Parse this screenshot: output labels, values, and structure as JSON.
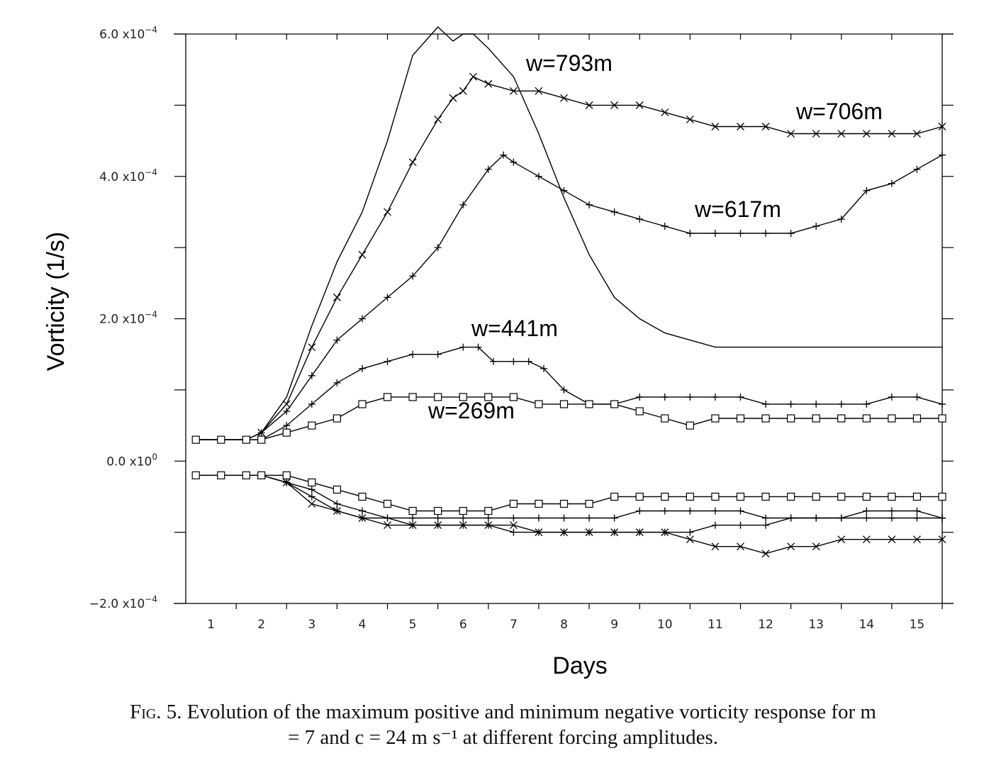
{
  "chart_data": {
    "type": "line",
    "title": "",
    "xlabel": "Days",
    "ylabel": "Vorticity (1/s)",
    "xlim": [
      0.5,
      15.5
    ],
    "ylim": [
      -0.0002,
      0.0006
    ],
    "x_ticks": [
      "1",
      "2",
      "3",
      "4",
      "5",
      "6",
      "7",
      "8",
      "9",
      "10",
      "11",
      "12",
      "13",
      "14",
      "15"
    ],
    "y_ticks": [
      {
        "mantissa": "6.0",
        "exp": "−4"
      },
      {
        "mantissa": "4.0",
        "exp": "−4"
      },
      {
        "mantissa": "2.0",
        "exp": "−4"
      },
      {
        "mantissa": "0.0",
        "exp": "0",
        "base": "x10"
      },
      {
        "mantissa": "−2.0",
        "exp": "−4"
      }
    ],
    "grid": false,
    "series": [
      {
        "name": "w=793m",
        "marker": "none",
        "x": [
          0.7,
          1.2,
          1.7,
          2.0,
          2.5,
          3.0,
          3.5,
          4.0,
          4.5,
          5.0,
          5.5,
          5.8,
          6.0,
          6.2,
          6.5,
          7.0,
          7.5,
          8.0,
          8.5,
          9.0,
          9.5,
          10.0,
          10.5,
          11.0,
          12.0,
          13.0,
          14.0,
          15.0,
          15.5
        ],
        "y": [
          3e-05,
          3e-05,
          3e-05,
          4e-05,
          9e-05,
          0.00019,
          0.00028,
          0.00035,
          0.00045,
          0.00057,
          0.00061,
          0.00059,
          0.0006,
          0.0006,
          0.00058,
          0.00054,
          0.00046,
          0.00037,
          0.00029,
          0.00023,
          0.0002,
          0.00018,
          0.00017,
          0.00016,
          0.00016,
          0.00016,
          0.00016,
          0.00016,
          0.00016
        ]
      },
      {
        "name": "w=706m",
        "marker": "x",
        "x": [
          0.7,
          1.2,
          1.7,
          2.0,
          2.5,
          3.0,
          3.5,
          4.0,
          4.5,
          5.0,
          5.5,
          5.8,
          6.0,
          6.2,
          6.5,
          7.0,
          7.5,
          8.0,
          8.5,
          9.0,
          9.5,
          10.0,
          10.5,
          11.0,
          11.5,
          12.0,
          12.5,
          13.0,
          13.5,
          14.0,
          14.5,
          15.0,
          15.5
        ],
        "y": [
          3e-05,
          3e-05,
          3e-05,
          4e-05,
          8e-05,
          0.00016,
          0.00023,
          0.00029,
          0.00035,
          0.00042,
          0.00048,
          0.00051,
          0.00052,
          0.00054,
          0.00053,
          0.00052,
          0.00052,
          0.00051,
          0.0005,
          0.0005,
          0.0005,
          0.00049,
          0.00048,
          0.00047,
          0.00047,
          0.00047,
          0.00046,
          0.00046,
          0.00046,
          0.00046,
          0.00046,
          0.00046,
          0.00047
        ]
      },
      {
        "name": "w=617m",
        "marker": "+",
        "x": [
          0.7,
          1.2,
          1.7,
          2.0,
          2.5,
          3.0,
          3.5,
          4.0,
          4.5,
          5.0,
          5.5,
          6.0,
          6.5,
          6.8,
          7.0,
          7.5,
          8.0,
          8.5,
          9.0,
          9.5,
          10.0,
          10.5,
          11.0,
          11.5,
          12.0,
          12.5,
          13.0,
          13.5,
          14.0,
          14.5,
          15.0,
          15.5
        ],
        "y": [
          3e-05,
          3e-05,
          3e-05,
          4e-05,
          7e-05,
          0.00012,
          0.00017,
          0.0002,
          0.00023,
          0.00026,
          0.0003,
          0.00036,
          0.00041,
          0.00043,
          0.00042,
          0.0004,
          0.00038,
          0.00036,
          0.00035,
          0.00034,
          0.00033,
          0.00032,
          0.00032,
          0.00032,
          0.00032,
          0.00032,
          0.00033,
          0.00034,
          0.00038,
          0.00039,
          0.00041,
          0.00043
        ]
      },
      {
        "name": "w=441m",
        "marker": "+",
        "x": [
          0.7,
          1.2,
          1.7,
          2.0,
          2.5,
          3.0,
          3.5,
          4.0,
          4.5,
          5.0,
          5.5,
          6.0,
          6.3,
          6.6,
          7.0,
          7.3,
          7.6,
          8.0,
          8.5,
          9.0,
          9.5,
          10.0,
          10.5,
          11.0,
          11.5,
          12.0,
          12.5,
          13.0,
          13.5,
          14.0,
          14.5,
          15.0,
          15.5
        ],
        "y": [
          3e-05,
          3e-05,
          3e-05,
          3e-05,
          5e-05,
          8e-05,
          0.00011,
          0.00013,
          0.00014,
          0.00015,
          0.00015,
          0.00016,
          0.00016,
          0.00014,
          0.00014,
          0.00014,
          0.00013,
          0.0001,
          8e-05,
          8e-05,
          9e-05,
          9e-05,
          9e-05,
          9e-05,
          9e-05,
          8e-05,
          8e-05,
          8e-05,
          8e-05,
          8e-05,
          9e-05,
          9e-05,
          8e-05
        ]
      },
      {
        "name": "w=269m",
        "marker": "square",
        "x": [
          0.7,
          1.2,
          1.7,
          2.0,
          2.5,
          3.0,
          3.5,
          4.0,
          4.5,
          5.0,
          5.5,
          6.0,
          6.5,
          7.0,
          7.5,
          8.0,
          8.5,
          9.0,
          9.5,
          10.0,
          10.5,
          11.0,
          11.5,
          12.0,
          12.5,
          13.0,
          13.5,
          14.0,
          14.5,
          15.0,
          15.5
        ],
        "y": [
          3e-05,
          3e-05,
          3e-05,
          3e-05,
          4e-05,
          5e-05,
          6e-05,
          8e-05,
          9e-05,
          9e-05,
          9e-05,
          9e-05,
          9e-05,
          9e-05,
          8e-05,
          8e-05,
          8e-05,
          8e-05,
          7e-05,
          6e-05,
          5e-05,
          6e-05,
          6e-05,
          6e-05,
          6e-05,
          6e-05,
          6e-05,
          6e-05,
          6e-05,
          6e-05,
          6e-05
        ]
      },
      {
        "name": "",
        "marker": "x",
        "x": [
          0.7,
          1.2,
          1.7,
          2.0,
          2.5,
          3.0,
          3.5,
          4.0,
          4.5,
          5.0,
          5.5,
          6.0,
          6.5,
          7.0,
          7.5,
          8.0,
          8.5,
          9.0,
          9.5,
          10.0,
          10.5,
          11.0,
          11.5,
          12.0,
          12.5,
          13.0,
          13.5,
          14.0,
          14.5,
          15.0,
          15.5
        ],
        "y": [
          -2e-05,
          -2e-05,
          -2e-05,
          -2e-05,
          -3e-05,
          -6e-05,
          -7e-05,
          -8e-05,
          -9e-05,
          -9e-05,
          -9e-05,
          -9e-05,
          -9e-05,
          -9e-05,
          -0.0001,
          -0.0001,
          -0.0001,
          -0.0001,
          -0.0001,
          -0.0001,
          -0.00011,
          -0.00012,
          -0.00012,
          -0.00013,
          -0.00012,
          -0.00012,
          -0.00011,
          -0.00011,
          -0.00011,
          -0.00011,
          -0.00011
        ]
      },
      {
        "name": "",
        "marker": "+",
        "x": [
          0.7,
          1.2,
          1.7,
          2.0,
          2.5,
          3.0,
          3.5,
          4.0,
          4.5,
          5.0,
          5.5,
          6.0,
          6.5,
          7.0,
          7.5,
          8.0,
          8.5,
          9.0,
          9.5,
          10.0,
          10.5,
          11.0,
          11.5,
          12.0,
          12.5,
          13.0,
          13.5,
          14.0,
          14.5,
          15.0,
          15.5
        ],
        "y": [
          -2e-05,
          -2e-05,
          -2e-05,
          -2e-05,
          -3e-05,
          -5e-05,
          -7e-05,
          -8e-05,
          -8e-05,
          -9e-05,
          -9e-05,
          -9e-05,
          -9e-05,
          -0.0001,
          -0.0001,
          -0.0001,
          -0.0001,
          -0.0001,
          -0.0001,
          -0.0001,
          -0.0001,
          -9e-05,
          -9e-05,
          -9e-05,
          -8e-05,
          -8e-05,
          -8e-05,
          -7e-05,
          -7e-05,
          -7e-05,
          -8e-05
        ]
      },
      {
        "name": "",
        "marker": "+",
        "x": [
          0.7,
          1.2,
          1.7,
          2.0,
          2.5,
          3.0,
          3.5,
          4.0,
          4.5,
          5.0,
          5.5,
          6.0,
          6.5,
          7.0,
          7.5,
          8.0,
          8.5,
          9.0,
          9.5,
          10.0,
          10.5,
          11.0,
          11.5,
          12.0,
          12.5,
          13.0,
          13.5,
          14.0,
          14.5,
          15.0,
          15.5
        ],
        "y": [
          -2e-05,
          -2e-05,
          -2e-05,
          -2e-05,
          -3e-05,
          -4e-05,
          -6e-05,
          -7e-05,
          -8e-05,
          -8e-05,
          -8e-05,
          -8e-05,
          -8e-05,
          -8e-05,
          -8e-05,
          -8e-05,
          -8e-05,
          -8e-05,
          -7e-05,
          -7e-05,
          -7e-05,
          -7e-05,
          -7e-05,
          -8e-05,
          -8e-05,
          -8e-05,
          -8e-05,
          -8e-05,
          -8e-05,
          -8e-05,
          -8e-05
        ]
      },
      {
        "name": "",
        "marker": "square",
        "x": [
          0.7,
          1.2,
          1.7,
          2.0,
          2.5,
          3.0,
          3.5,
          4.0,
          4.5,
          5.0,
          5.5,
          6.0,
          6.5,
          7.0,
          7.5,
          8.0,
          8.5,
          9.0,
          9.5,
          10.0,
          10.5,
          11.0,
          11.5,
          12.0,
          12.5,
          13.0,
          13.5,
          14.0,
          14.5,
          15.0,
          15.5
        ],
        "y": [
          -2e-05,
          -2e-05,
          -2e-05,
          -2e-05,
          -2e-05,
          -3e-05,
          -4e-05,
          -5e-05,
          -6e-05,
          -7e-05,
          -7e-05,
          -7e-05,
          -7e-05,
          -6e-05,
          -6e-05,
          -6e-05,
          -6e-05,
          -5e-05,
          -5e-05,
          -5e-05,
          -5e-05,
          -5e-05,
          -5e-05,
          -5e-05,
          -5e-05,
          -5e-05,
          -5e-05,
          -5e-05,
          -5e-05,
          -5e-05,
          -5e-05
        ]
      }
    ]
  },
  "labels": {
    "w793": "w=793m",
    "w706": "w=706m",
    "w617": "w=617m",
    "w441": "w=441m",
    "w269": "w=269m"
  },
  "caption": {
    "fig": "Fig. 5.",
    "line1": "Evolution of the maximum positive and minimum negative vorticity response for m",
    "line2": "= 7 and c = 24 m s⁻¹ at different forcing amplitudes."
  }
}
